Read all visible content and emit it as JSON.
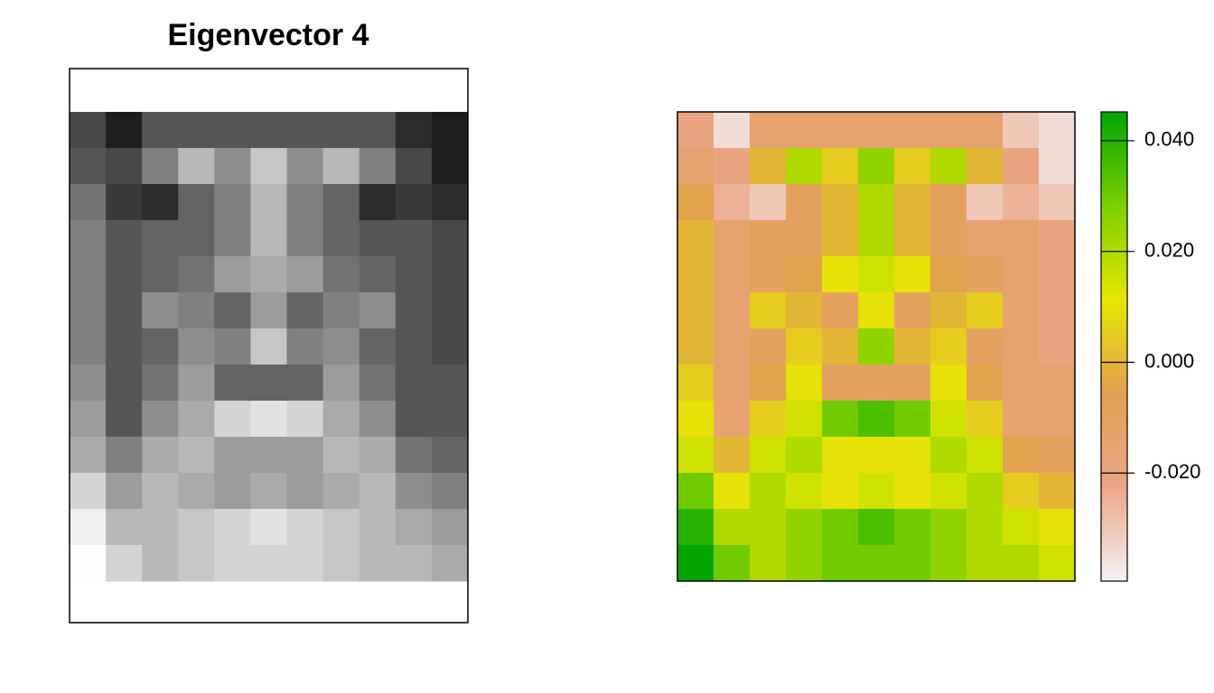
{
  "chart_data": [
    {
      "type": "image",
      "title": "Eigenvector 4",
      "colors": [
        "#111111",
        "#FFFFFF"
      ],
      "zlim": [
        -0.0395,
        0.0452
      ],
      "z": [
        [
          -0.02,
          -0.035,
          -0.015,
          -0.015,
          -0.015,
          -0.015,
          -0.015,
          -0.015,
          -0.015,
          -0.03,
          -0.035
        ],
        [
          -0.015,
          -0.02,
          0.0,
          0.02,
          0.005,
          0.025,
          0.005,
          0.02,
          0.0,
          -0.02,
          -0.035
        ],
        [
          -0.005,
          -0.025,
          -0.03,
          -0.01,
          0.0,
          0.02,
          0.0,
          -0.01,
          -0.03,
          -0.025,
          -0.03
        ],
        [
          0.0,
          -0.015,
          -0.01,
          -0.01,
          0.0,
          0.02,
          0.0,
          -0.01,
          -0.015,
          -0.015,
          -0.02
        ],
        [
          0.0,
          -0.015,
          -0.01,
          -0.005,
          0.01,
          0.015,
          0.01,
          -0.005,
          -0.01,
          -0.015,
          -0.02
        ],
        [
          0.0,
          -0.015,
          0.005,
          0.0,
          -0.01,
          0.01,
          -0.01,
          0.0,
          0.005,
          -0.015,
          -0.02
        ],
        [
          0.0,
          -0.015,
          -0.01,
          0.005,
          0.0,
          0.025,
          0.0,
          0.005,
          -0.01,
          -0.015,
          -0.02
        ],
        [
          0.005,
          -0.015,
          -0.005,
          0.01,
          -0.01,
          -0.01,
          -0.01,
          0.01,
          -0.005,
          -0.015,
          -0.015
        ],
        [
          0.01,
          -0.015,
          0.005,
          0.015,
          0.03,
          0.035,
          0.03,
          0.015,
          0.005,
          -0.015,
          -0.015
        ],
        [
          0.015,
          0.0,
          0.015,
          0.02,
          0.01,
          0.01,
          0.01,
          0.02,
          0.015,
          -0.005,
          -0.01
        ],
        [
          0.03,
          0.01,
          0.02,
          0.015,
          0.01,
          0.015,
          0.01,
          0.015,
          0.02,
          0.005,
          0.0
        ],
        [
          0.04,
          0.02,
          0.02,
          0.025,
          0.03,
          0.035,
          0.03,
          0.025,
          0.02,
          0.015,
          0.01
        ],
        [
          0.045,
          0.03,
          0.02,
          0.025,
          0.03,
          0.03,
          0.03,
          0.025,
          0.02,
          0.02,
          0.015
        ]
      ]
    },
    {
      "type": "heatmap",
      "colors": [
        "#F2F2F2",
        "#EBA688",
        "#E2A050",
        "#E6E600",
        "#7CCF00",
        "#00A600"
      ],
      "zlim": [
        -0.0395,
        0.0452
      ],
      "zticks": [
        {
          "value": 0.04,
          "label": "0.040"
        },
        {
          "value": 0.02,
          "label": "0.020"
        },
        {
          "value": 0.0,
          "label": "0.000"
        },
        {
          "value": -0.02,
          "label": "-0.020"
        }
      ],
      "z": [
        [
          -0.02,
          -0.035,
          -0.015,
          -0.015,
          -0.015,
          -0.015,
          -0.015,
          -0.015,
          -0.015,
          -0.03,
          -0.035
        ],
        [
          -0.015,
          -0.02,
          0.0,
          0.02,
          0.005,
          0.025,
          0.005,
          0.02,
          0.0,
          -0.02,
          -0.035
        ],
        [
          -0.005,
          -0.025,
          -0.03,
          -0.01,
          0.0,
          0.02,
          0.0,
          -0.01,
          -0.03,
          -0.025,
          -0.03
        ],
        [
          0.0,
          -0.015,
          -0.01,
          -0.01,
          0.0,
          0.02,
          0.0,
          -0.01,
          -0.015,
          -0.015,
          -0.02
        ],
        [
          0.0,
          -0.015,
          -0.01,
          -0.005,
          0.01,
          0.015,
          0.01,
          -0.005,
          -0.01,
          -0.015,
          -0.02
        ],
        [
          0.0,
          -0.015,
          0.005,
          0.0,
          -0.01,
          0.01,
          -0.01,
          0.0,
          0.005,
          -0.015,
          -0.02
        ],
        [
          0.0,
          -0.015,
          -0.01,
          0.005,
          0.0,
          0.025,
          0.0,
          0.005,
          -0.01,
          -0.015,
          -0.02
        ],
        [
          0.005,
          -0.015,
          -0.005,
          0.01,
          -0.01,
          -0.01,
          -0.01,
          0.01,
          -0.005,
          -0.015,
          -0.015
        ],
        [
          0.01,
          -0.015,
          0.005,
          0.015,
          0.03,
          0.035,
          0.03,
          0.015,
          0.005,
          -0.015,
          -0.015
        ],
        [
          0.015,
          0.0,
          0.015,
          0.02,
          0.01,
          0.01,
          0.01,
          0.02,
          0.015,
          -0.005,
          -0.01
        ],
        [
          0.03,
          0.01,
          0.02,
          0.015,
          0.01,
          0.015,
          0.01,
          0.015,
          0.02,
          0.005,
          0.0
        ],
        [
          0.04,
          0.02,
          0.02,
          0.025,
          0.03,
          0.035,
          0.03,
          0.025,
          0.02,
          0.015,
          0.01
        ],
        [
          0.045,
          0.03,
          0.02,
          0.025,
          0.03,
          0.03,
          0.03,
          0.025,
          0.02,
          0.02,
          0.015
        ]
      ]
    }
  ]
}
